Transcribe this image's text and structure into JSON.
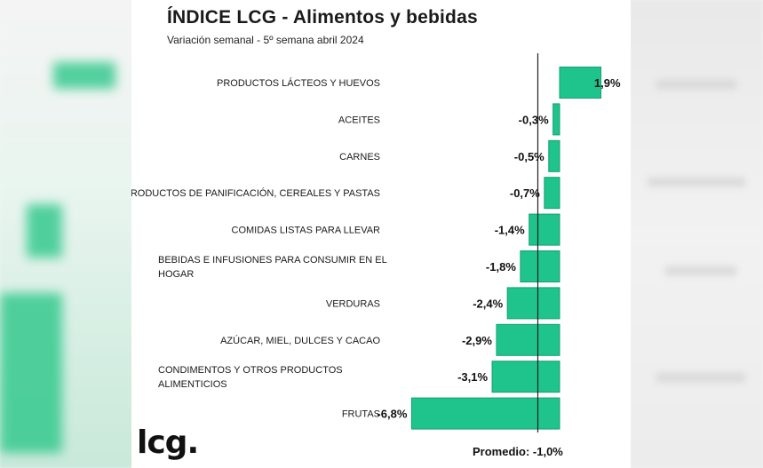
{
  "chart_data": {
    "type": "bar",
    "orientation": "horizontal",
    "title": "ÍNDICE LCG - Alimentos y bebidas",
    "subtitle": "Variación semanal - 5º semana abril 2024",
    "categories": [
      [
        "PRODUCTOS LÁCTEOS Y HUEVOS"
      ],
      [
        "ACEITES"
      ],
      [
        "CARNES"
      ],
      [
        "PRODUCTOS DE PANIFICACIÓN, CEREALES Y PASTAS"
      ],
      [
        "COMIDAS LISTAS PARA LLEVAR"
      ],
      [
        "BEBIDAS E INFUSIONES PARA CONSUMIR EN EL",
        "HOGAR"
      ],
      [
        "VERDURAS"
      ],
      [
        "AZÚCAR, MIEL, DULCES Y CACAO"
      ],
      [
        "CONDIMENTOS Y OTROS PRODUCTOS",
        "ALIMENTICIOS"
      ],
      [
        "FRUTAS"
      ]
    ],
    "values": [
      1.9,
      -0.3,
      -0.5,
      -0.7,
      -1.4,
      -1.8,
      -2.4,
      -2.9,
      -3.1,
      -6.8
    ],
    "value_labels": [
      "1,9%",
      "-0,3%",
      "-0,5%",
      "-0,7%",
      "-1,4%",
      "-1,8%",
      "-2,4%",
      "-2,9%",
      "-3,1%",
      "-6,8%"
    ],
    "reference_line": {
      "value": -1.0,
      "label": "Promedio: -1,0%"
    },
    "bar_color": "#1fc48c",
    "bar_edge_color": "#13a070",
    "grid": false,
    "legend": "none"
  },
  "brand": {
    "logo_text": "lcg."
  }
}
